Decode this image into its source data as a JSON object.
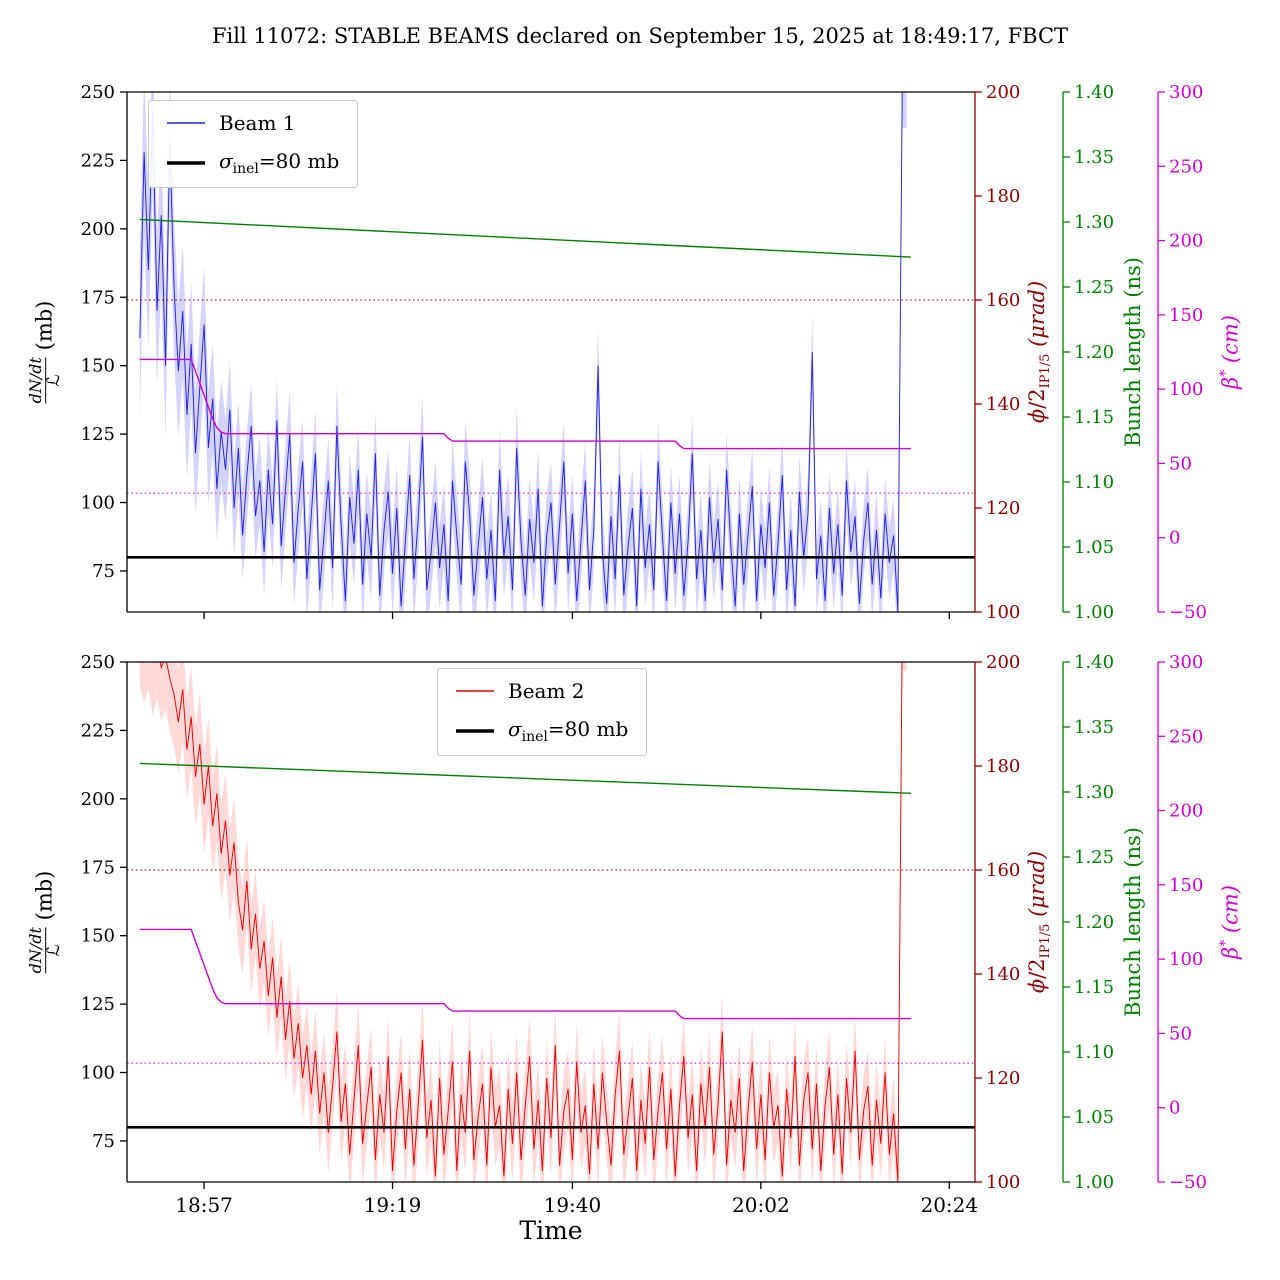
{
  "title": "Fill 11072: STABLE BEAMS declared on September 15, 2025 at 18:49:17, FBCT",
  "xlabel": "Time",
  "sigma_label": {
    "sym": "σ",
    "sub": "inel",
    "rest": "=80 mb"
  },
  "sigma_color": "#000000",
  "chart_data": {
    "type": "line",
    "x_axis": {
      "units": "minutes after 18:48",
      "range": [
        0,
        99
      ],
      "ticks": [
        {
          "t": 9,
          "label": "18:57"
        },
        {
          "t": 31,
          "label": "19:19"
        },
        {
          "t": 52,
          "label": "19:40"
        },
        {
          "t": 74,
          "label": "20:02"
        },
        {
          "t": 96,
          "label": "20:24"
        }
      ]
    },
    "axes": {
      "left": {
        "num": "dN/dt",
        "den": "ℒ",
        "unit": " (mb)",
        "lim": [
          60,
          250
        ],
        "color": "#000000",
        "ticks": [
          {
            "v": 75,
            "label": "75"
          },
          {
            "v": 100,
            "label": "100"
          },
          {
            "v": 125,
            "label": "125"
          },
          {
            "v": 150,
            "label": "150"
          },
          {
            "v": 175,
            "label": "175"
          },
          {
            "v": 200,
            "label": "200"
          },
          {
            "v": 225,
            "label": "225"
          },
          {
            "v": 250,
            "label": "250"
          }
        ]
      },
      "phi": {
        "sym": "ϕ",
        "frac": "/2",
        "sub": "IP1/5",
        "unit": "(μrad)",
        "lim": [
          100,
          200
        ],
        "color": "#8b0000",
        "ticks": [
          {
            "v": 100,
            "label": "100"
          },
          {
            "v": 120,
            "label": "120"
          },
          {
            "v": 140,
            "label": "140"
          },
          {
            "v": 160,
            "label": "160"
          },
          {
            "v": 180,
            "label": "180"
          },
          {
            "v": 200,
            "label": "200"
          }
        ]
      },
      "bunch": {
        "label": "Bunch length (ns)",
        "lim": [
          1.0,
          1.4
        ],
        "color": "#008000",
        "ticks": [
          {
            "v": 1.0,
            "label": "1.00"
          },
          {
            "v": 1.05,
            "label": "1.05"
          },
          {
            "v": 1.1,
            "label": "1.10"
          },
          {
            "v": 1.15,
            "label": "1.15"
          },
          {
            "v": 1.2,
            "label": "1.20"
          },
          {
            "v": 1.25,
            "label": "1.25"
          },
          {
            "v": 1.3,
            "label": "1.30"
          },
          {
            "v": 1.35,
            "label": "1.35"
          },
          {
            "v": 1.4,
            "label": "1.40"
          }
        ]
      },
      "beta": {
        "sym": "β",
        "sup": "*",
        "unit": "(cm)",
        "lim": [
          -50,
          300
        ],
        "color": "#cf00cf",
        "ticks": [
          {
            "v": -50,
            "label": "−50"
          },
          {
            "v": 0,
            "label": "0"
          },
          {
            "v": 50,
            "label": "50"
          },
          {
            "v": 100,
            "label": "100"
          },
          {
            "v": 150,
            "label": "150"
          },
          {
            "v": 200,
            "label": "200"
          },
          {
            "v": 250,
            "label": "250"
          },
          {
            "v": 300,
            "label": "300"
          }
        ]
      }
    },
    "subplots": [
      {
        "name": "beam1",
        "beam": {
          "label": "Beam 1",
          "color": "#2222dd",
          "band_color": "rgba(60,60,230,0.22)",
          "t0": 1.5,
          "dt": 0.5,
          "values": [
            160,
            228,
            185,
            243,
            170,
            205,
            150,
            232,
            178,
            148,
            170,
            132,
            158,
            118,
            142,
            165,
            120,
            138,
            105,
            126,
            112,
            134,
            98,
            120,
            88,
            110,
            128,
            95,
            108,
            82,
            112,
            92,
            130,
            84,
            105,
            125,
            78,
            98,
            115,
            72,
            95,
            118,
            68,
            88,
            108,
            76,
            128,
            92,
            64,
            102,
            85,
            112,
            70,
            96,
            80,
            118,
            66,
            90,
            104,
            74,
            98,
            62,
            86,
            110,
            72,
            94,
            124,
            68,
            82,
            100,
            76,
            92,
            64,
            108,
            88,
            70,
            115,
            96,
            66,
            84,
            102,
            72,
            90,
            64,
            112,
            80,
            95,
            68,
            120,
            86,
            66,
            94,
            78,
            105,
            62,
            88,
            100,
            70,
            92,
            115,
            74,
            96,
            64,
            86,
            108,
            68,
            90,
            150,
            82,
            63,
            95,
            72,
            110,
            66,
            84,
            98,
            62,
            105,
            76,
            92,
            68,
            115,
            88,
            64,
            100,
            74,
            96,
            66,
            86,
            118,
            72,
            90,
            64,
            102,
            78,
            94,
            68,
            112,
            84,
            62,
            96,
            70,
            88,
            106,
            64,
            92,
            76,
            100,
            66,
            85,
            110,
            68,
            90,
            62,
            104,
            80,
            96,
            155,
            72,
            88,
            64,
            98,
            74,
            92,
            66,
            108,
            82,
            95,
            63,
            86,
            100,
            70,
            90,
            65,
            96,
            78,
            88,
            60,
            250,
            250
          ]
        },
        "err_profile": [
          [
            1.5,
            30
          ],
          [
            8,
            22
          ],
          [
            14,
            16
          ],
          [
            92,
            13
          ]
        ],
        "sigma": {
          "value": 80
        },
        "phi_line": {
          "value": 160,
          "style": "dotted"
        },
        "beta_ref": {
          "value": 30,
          "style": "dotted"
        },
        "beta_steps": [
          [
            1.5,
            120
          ],
          [
            7.5,
            120
          ],
          [
            8,
            112
          ],
          [
            8.5,
            104
          ],
          [
            9,
            96
          ],
          [
            9.5,
            88
          ],
          [
            10,
            80
          ],
          [
            10.5,
            74
          ],
          [
            11,
            71
          ],
          [
            11.5,
            70
          ],
          [
            37,
            70
          ],
          [
            37.5,
            67
          ],
          [
            38,
            65
          ],
          [
            64,
            65
          ],
          [
            64.5,
            62
          ],
          [
            65,
            60
          ],
          [
            91.5,
            60
          ]
        ],
        "bunch_line": {
          "points": [
            [
              1.5,
              1.302
            ],
            [
              91.5,
              1.273
            ]
          ]
        }
      },
      {
        "name": "beam2",
        "beam": {
          "label": "Beam 2",
          "color": "#e60000",
          "band_color": "rgba(255,40,40,0.18)",
          "t0": 1.5,
          "dt": 0.5,
          "values": [
            262,
            255,
            260,
            250,
            256,
            248,
            252,
            244,
            238,
            228,
            240,
            218,
            230,
            208,
            220,
            198,
            212,
            190,
            202,
            180,
            192,
            172,
            184,
            162,
            152,
            170,
            145,
            158,
            138,
            148,
            128,
            142,
            120,
            135,
            112,
            126,
            105,
            118,
            98,
            110,
            92,
            108,
            85,
            100,
            78,
            95,
            115,
            82,
            96,
            70,
            90,
            110,
            74,
            88,
            102,
            68,
            92,
            78,
            106,
            64,
            86,
            100,
            72,
            94,
            66,
            88,
            112,
            76,
            90,
            62,
            98,
            70,
            86,
            104,
            64,
            92,
            78,
            108,
            68,
            84,
            96,
            66,
            102,
            80,
            88,
            62,
            94,
            74,
            100,
            68,
            88,
            106,
            72,
            90,
            64,
            98,
            76,
            110,
            66,
            86,
            94,
            68,
            104,
            78,
            88,
            63,
            96,
            72,
            100,
            82,
            66,
            92,
            108,
            70,
            84,
            98,
            64,
            90,
            74,
            102,
            68,
            86,
            100,
            72,
            94,
            62,
            88,
            106,
            76,
            92,
            64,
            96,
            80,
            102,
            70,
            88,
            115,
            66,
            90,
            78,
            98,
            64,
            86,
            104,
            72,
            92,
            68,
            100,
            80,
            88,
            62,
            94,
            76,
            106,
            66,
            90,
            100,
            72,
            96,
            64,
            88,
            102,
            70,
            92,
            63,
            98,
            78,
            108,
            68,
            86,
            95,
            66,
            90,
            74,
            100,
            70,
            85,
            60,
            260,
            260
          ]
        },
        "err_profile": [
          [
            1.5,
            20
          ],
          [
            10,
            18
          ],
          [
            16,
            15
          ],
          [
            92,
            13
          ]
        ],
        "sigma": {
          "value": 80
        },
        "phi_line": {
          "value": 160,
          "style": "dotted"
        },
        "beta_ref": {
          "value": 30,
          "style": "dotted"
        },
        "beta_steps": [
          [
            1.5,
            120
          ],
          [
            7.5,
            120
          ],
          [
            8,
            112
          ],
          [
            8.5,
            104
          ],
          [
            9,
            96
          ],
          [
            9.5,
            88
          ],
          [
            10,
            80
          ],
          [
            10.5,
            74
          ],
          [
            11,
            71
          ],
          [
            11.5,
            70
          ],
          [
            37,
            70
          ],
          [
            37.5,
            67
          ],
          [
            38,
            65
          ],
          [
            64,
            65
          ],
          [
            64.5,
            62
          ],
          [
            65,
            60
          ],
          [
            91.5,
            60
          ]
        ],
        "bunch_line": {
          "points": [
            [
              1.5,
              1.322
            ],
            [
              91.5,
              1.299
            ]
          ]
        }
      }
    ]
  }
}
